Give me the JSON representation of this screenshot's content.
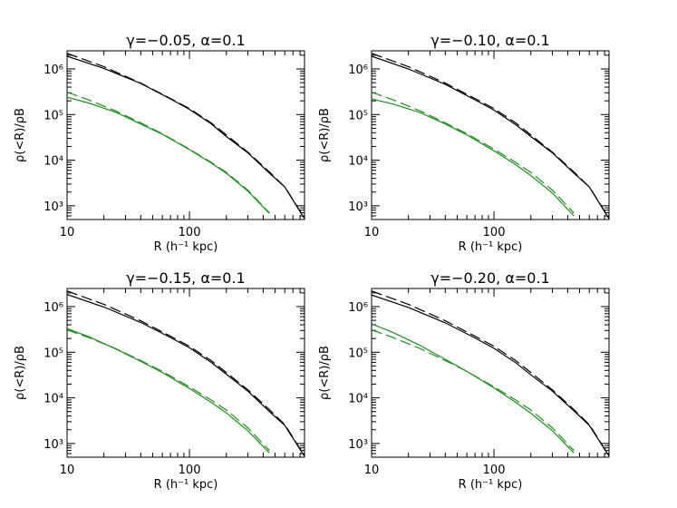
{
  "chart_data": [
    {
      "type": "line",
      "title": "γ=−0.05, α=0.1",
      "xlabel": "R (h⁻¹ kpc)",
      "ylabel": "ρ(<R)/ρB",
      "xscale": "log",
      "yscale": "log",
      "xlim": [
        10,
        870
      ],
      "ylim": [
        500,
        2500000
      ],
      "xtick_labels": [
        "10",
        "100"
      ],
      "ytick_labels": [
        "10³",
        "10⁴",
        "10⁵",
        "10⁶"
      ],
      "series": [
        {
          "style": "solid",
          "color": "#000000",
          "x": [
            10,
            20,
            40,
            70,
            100,
            150,
            200,
            300,
            450,
            600,
            870
          ],
          "y": [
            1900000,
            1030000,
            480000,
            220000,
            130000,
            63000,
            33000,
            14500,
            5200,
            2600,
            520
          ]
        },
        {
          "style": "dashed",
          "color": "#000000",
          "x": [
            10,
            20,
            40,
            70,
            100,
            150,
            200,
            300,
            450,
            600,
            870
          ],
          "y": [
            2200000,
            1120000,
            490000,
            225000,
            135000,
            66000,
            36000,
            15000,
            5500,
            2600,
            540
          ]
        },
        {
          "style": "solid",
          "color": "#228B22",
          "x": [
            10,
            15,
            25,
            40,
            60,
            100,
            150,
            200,
            300,
            450
          ],
          "y": [
            240000,
            180000,
            112000,
            62000,
            37000,
            17000,
            8700,
            5200,
            2100,
            680
          ]
        },
        {
          "style": "dashed",
          "color": "#228B22",
          "x": [
            10,
            15,
            25,
            40,
            60,
            100,
            150,
            200,
            300,
            450
          ],
          "y": [
            310000,
            210000,
            120000,
            66000,
            38000,
            17500,
            9000,
            5400,
            2200,
            700
          ]
        }
      ]
    },
    {
      "type": "line",
      "title": "γ=−0.10, α=0.1",
      "xlabel": "R (h⁻¹ kpc)",
      "ylabel": "ρ(<R)/ρB",
      "xscale": "log",
      "yscale": "log",
      "xlim": [
        10,
        870
      ],
      "ylim": [
        500,
        2500000
      ],
      "xtick_labels": [
        "10",
        "100"
      ],
      "ytick_labels": [
        "10³",
        "10⁴",
        "10⁵",
        "10⁶"
      ],
      "series": [
        {
          "style": "solid",
          "color": "#000000",
          "x": [
            10,
            20,
            40,
            70,
            100,
            150,
            200,
            300,
            450,
            600,
            870
          ],
          "y": [
            1900000,
            1000000,
            460000,
            210000,
            125000,
            60000,
            33000,
            14500,
            5200,
            2600,
            520
          ]
        },
        {
          "style": "dashed",
          "color": "#000000",
          "x": [
            10,
            20,
            40,
            70,
            100,
            150,
            200,
            300,
            450,
            600,
            870
          ],
          "y": [
            2200000,
            1120000,
            490000,
            225000,
            135000,
            66000,
            36000,
            15000,
            5500,
            2600,
            540
          ]
        },
        {
          "style": "solid",
          "color": "#228B22",
          "x": [
            10,
            15,
            25,
            40,
            60,
            100,
            150,
            200,
            300,
            450
          ],
          "y": [
            220000,
            170000,
            110000,
            62000,
            36000,
            16000,
            8000,
            4600,
            1900,
            600
          ]
        },
        {
          "style": "dashed",
          "color": "#228B22",
          "x": [
            10,
            15,
            25,
            40,
            60,
            100,
            150,
            200,
            300,
            450
          ],
          "y": [
            310000,
            210000,
            120000,
            66000,
            38000,
            17500,
            9000,
            5400,
            2200,
            700
          ]
        }
      ]
    },
    {
      "type": "line",
      "title": "γ=−0.15, α=0.1",
      "xlabel": "R (h⁻¹ kpc)",
      "ylabel": "ρ(<R)/ρB",
      "xscale": "log",
      "yscale": "log",
      "xlim": [
        10,
        870
      ],
      "ylim": [
        500,
        2500000
      ],
      "xtick_labels": [
        "10",
        "100"
      ],
      "ytick_labels": [
        "10³",
        "10⁴",
        "10⁵",
        "10⁶"
      ],
      "series": [
        {
          "style": "solid",
          "color": "#000000",
          "x": [
            10,
            20,
            40,
            70,
            100,
            150,
            200,
            300,
            450,
            600,
            870
          ],
          "y": [
            1850000,
            980000,
            450000,
            210000,
            125000,
            60000,
            33000,
            14000,
            5000,
            2500,
            520
          ]
        },
        {
          "style": "dashed",
          "color": "#000000",
          "x": [
            10,
            20,
            40,
            70,
            100,
            150,
            200,
            300,
            450,
            600,
            870
          ],
          "y": [
            2200000,
            1120000,
            490000,
            225000,
            135000,
            66000,
            36000,
            15000,
            5500,
            2600,
            540
          ]
        },
        {
          "style": "solid",
          "color": "#228B22",
          "x": [
            10,
            15,
            25,
            40,
            60,
            100,
            150,
            200,
            300,
            450
          ],
          "y": [
            330000,
            220000,
            118000,
            63000,
            36000,
            16000,
            8000,
            4700,
            1900,
            620
          ]
        },
        {
          "style": "dashed",
          "color": "#228B22",
          "x": [
            10,
            15,
            25,
            40,
            60,
            100,
            150,
            200,
            300,
            450
          ],
          "y": [
            310000,
            210000,
            120000,
            66000,
            38000,
            17500,
            9000,
            5400,
            2200,
            700
          ]
        }
      ]
    },
    {
      "type": "line",
      "title": "γ=−0.20, α=0.1",
      "xlabel": "R (h⁻¹ kpc)",
      "ylabel": "ρ(<R)/ρB",
      "xscale": "log",
      "yscale": "log",
      "xlim": [
        10,
        870
      ],
      "ylim": [
        500,
        2500000
      ],
      "xtick_labels": [
        "10",
        "100"
      ],
      "ytick_labels": [
        "10³",
        "10⁴",
        "10⁵",
        "10⁶"
      ],
      "series": [
        {
          "style": "solid",
          "color": "#000000",
          "x": [
            10,
            20,
            40,
            70,
            100,
            150,
            200,
            300,
            450,
            600,
            870
          ],
          "y": [
            1800000,
            960000,
            440000,
            205000,
            122000,
            59000,
            32000,
            14000,
            5200,
            2500,
            530
          ]
        },
        {
          "style": "dashed",
          "color": "#000000",
          "x": [
            10,
            20,
            40,
            70,
            100,
            150,
            200,
            300,
            450,
            600,
            870
          ],
          "y": [
            2200000,
            1120000,
            490000,
            225000,
            135000,
            66000,
            36000,
            15000,
            5500,
            2600,
            540
          ]
        },
        {
          "style": "solid",
          "color": "#228B22",
          "x": [
            10,
            15,
            25,
            40,
            60,
            100,
            150,
            200,
            300,
            450
          ],
          "y": [
            420000,
            270000,
            140000,
            70000,
            38000,
            16500,
            8000,
            4600,
            1900,
            620
          ]
        },
        {
          "style": "dashed",
          "color": "#228B22",
          "x": [
            10,
            15,
            25,
            40,
            60,
            100,
            150,
            200,
            300,
            450
          ],
          "y": [
            310000,
            210000,
            120000,
            66000,
            38000,
            17500,
            9000,
            5400,
            2200,
            700
          ]
        }
      ]
    }
  ]
}
